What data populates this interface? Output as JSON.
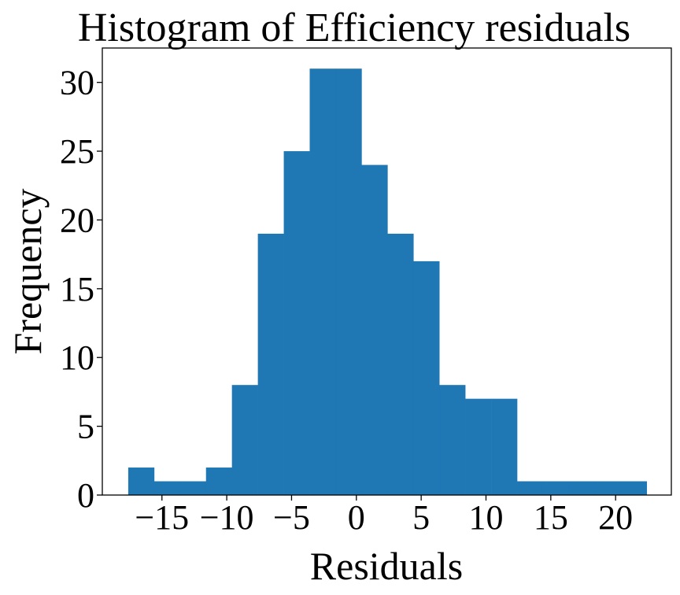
{
  "chart_data": {
    "type": "bar",
    "title": "Histogram of Efficiency residuals",
    "xlabel": "Residuals",
    "ylabel": "Frequency",
    "xlim": [
      -19.6,
      24.3
    ],
    "ylim": [
      0,
      32.5
    ],
    "x_ticks": [
      -15,
      -10,
      -5,
      0,
      5,
      10,
      15,
      20
    ],
    "x_tick_labels": [
      "−15",
      "−10",
      "−5",
      "0",
      "5",
      "10",
      "15",
      "20"
    ],
    "y_ticks": [
      0,
      5,
      10,
      15,
      20,
      25,
      30
    ],
    "y_tick_labels": [
      "0",
      "5",
      "10",
      "15",
      "20",
      "25",
      "30"
    ],
    "bin_edges": [
      -17.6,
      -15.6,
      -13.6,
      -11.6,
      -9.6,
      -7.6,
      -5.6,
      -3.6,
      -1.6,
      0.4,
      2.4,
      4.4,
      6.4,
      8.4,
      10.4,
      12.4,
      14.4,
      16.4,
      18.4,
      20.4,
      22.4
    ],
    "values": [
      2,
      1,
      1,
      2,
      8,
      19,
      25,
      31,
      31,
      24,
      19,
      17,
      8,
      7,
      7,
      1,
      1,
      1,
      1,
      1
    ],
    "bar_color": "#1f77b4",
    "grid": false,
    "legend": "none"
  }
}
